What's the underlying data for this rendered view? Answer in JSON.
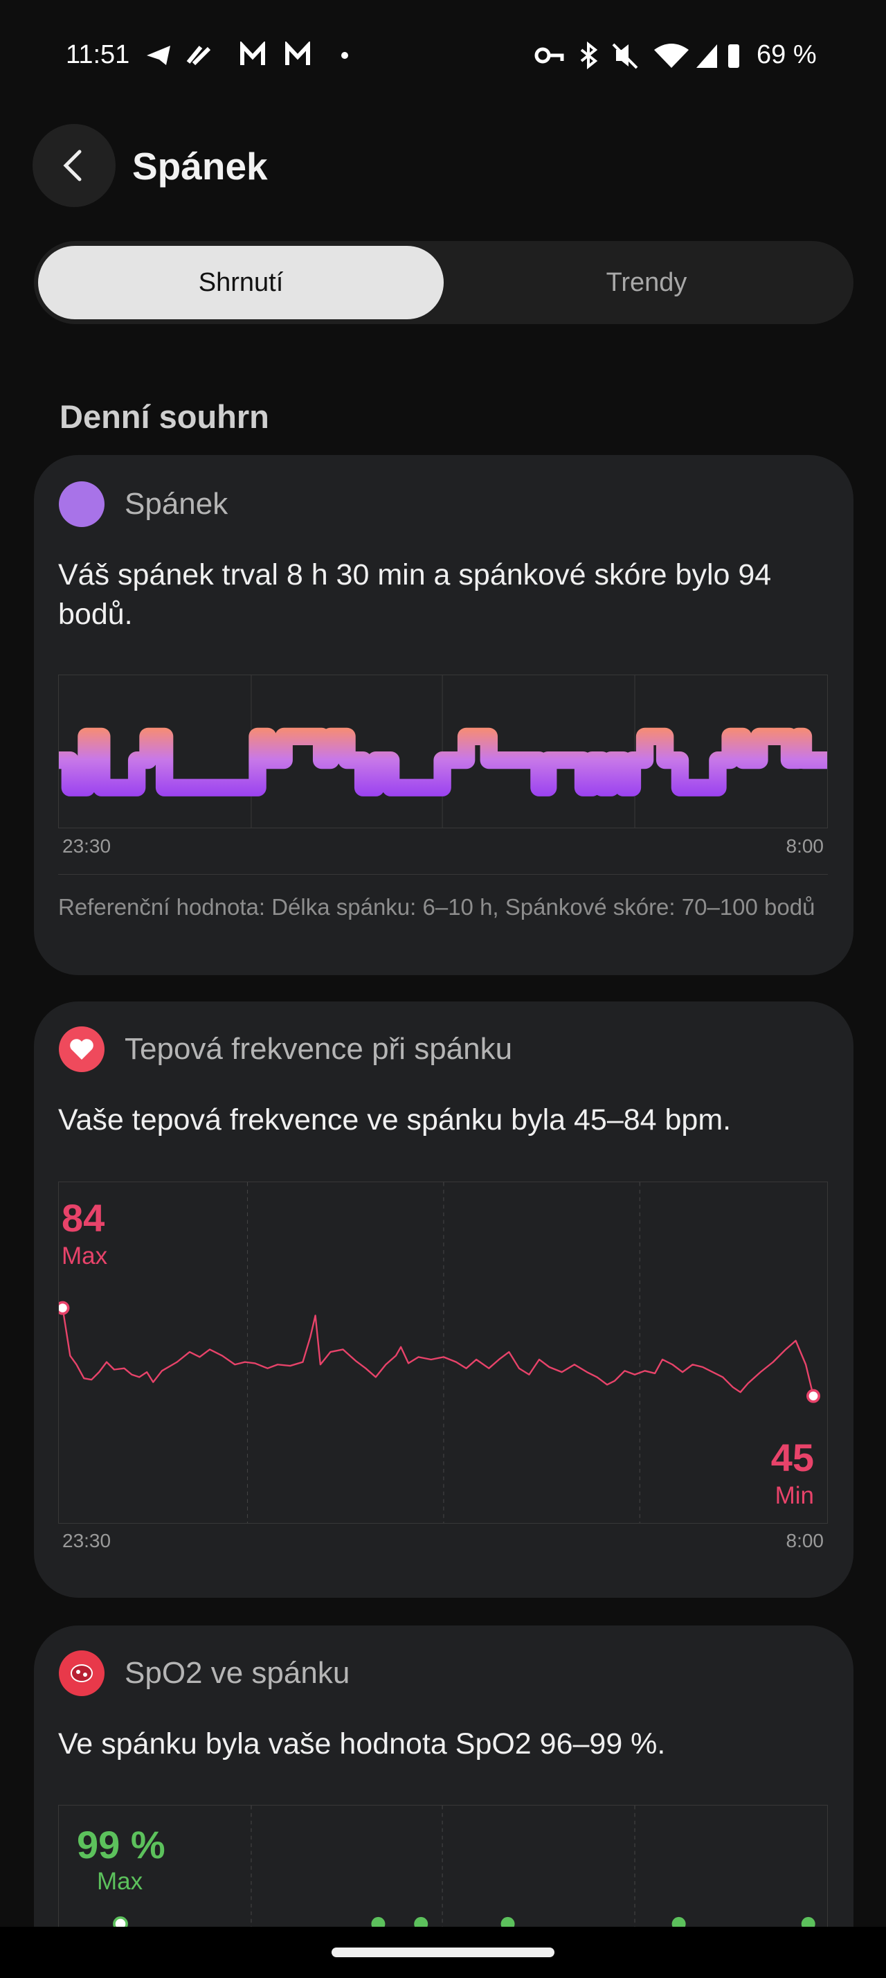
{
  "status_bar": {
    "time": "11:51",
    "battery": "69 %"
  },
  "header": {
    "title": "Spánek"
  },
  "tabs": [
    "Shrnutí",
    "Trendy"
  ],
  "section_title": "Denní souhrn",
  "cards": [
    {
      "title": "Spánek",
      "summary": "Váš spánek trval 8 h 30 min a spánkové skóre bylo 94 bodů.",
      "x_start": "23:30",
      "x_end": "8:00",
      "reference": "Referenční hodnota: Délka spánku: 6–10 h, Spánkové skóre: 70–100 bodů"
    },
    {
      "title": "Tepová frekvence při spánku",
      "summary": "Vaše tepová frekvence ve spánku byla 45–84 bpm.",
      "max": "84",
      "max_label": "Max",
      "min": "45",
      "min_label": "Min",
      "x_start": "23:30",
      "x_end": "8:00"
    },
    {
      "title": "SpO2 ve spánku",
      "summary": "Ve spánku byla vaše hodnota SpO2 96–99 %.",
      "max": "99 %",
      "max_label": "Max"
    }
  ]
}
